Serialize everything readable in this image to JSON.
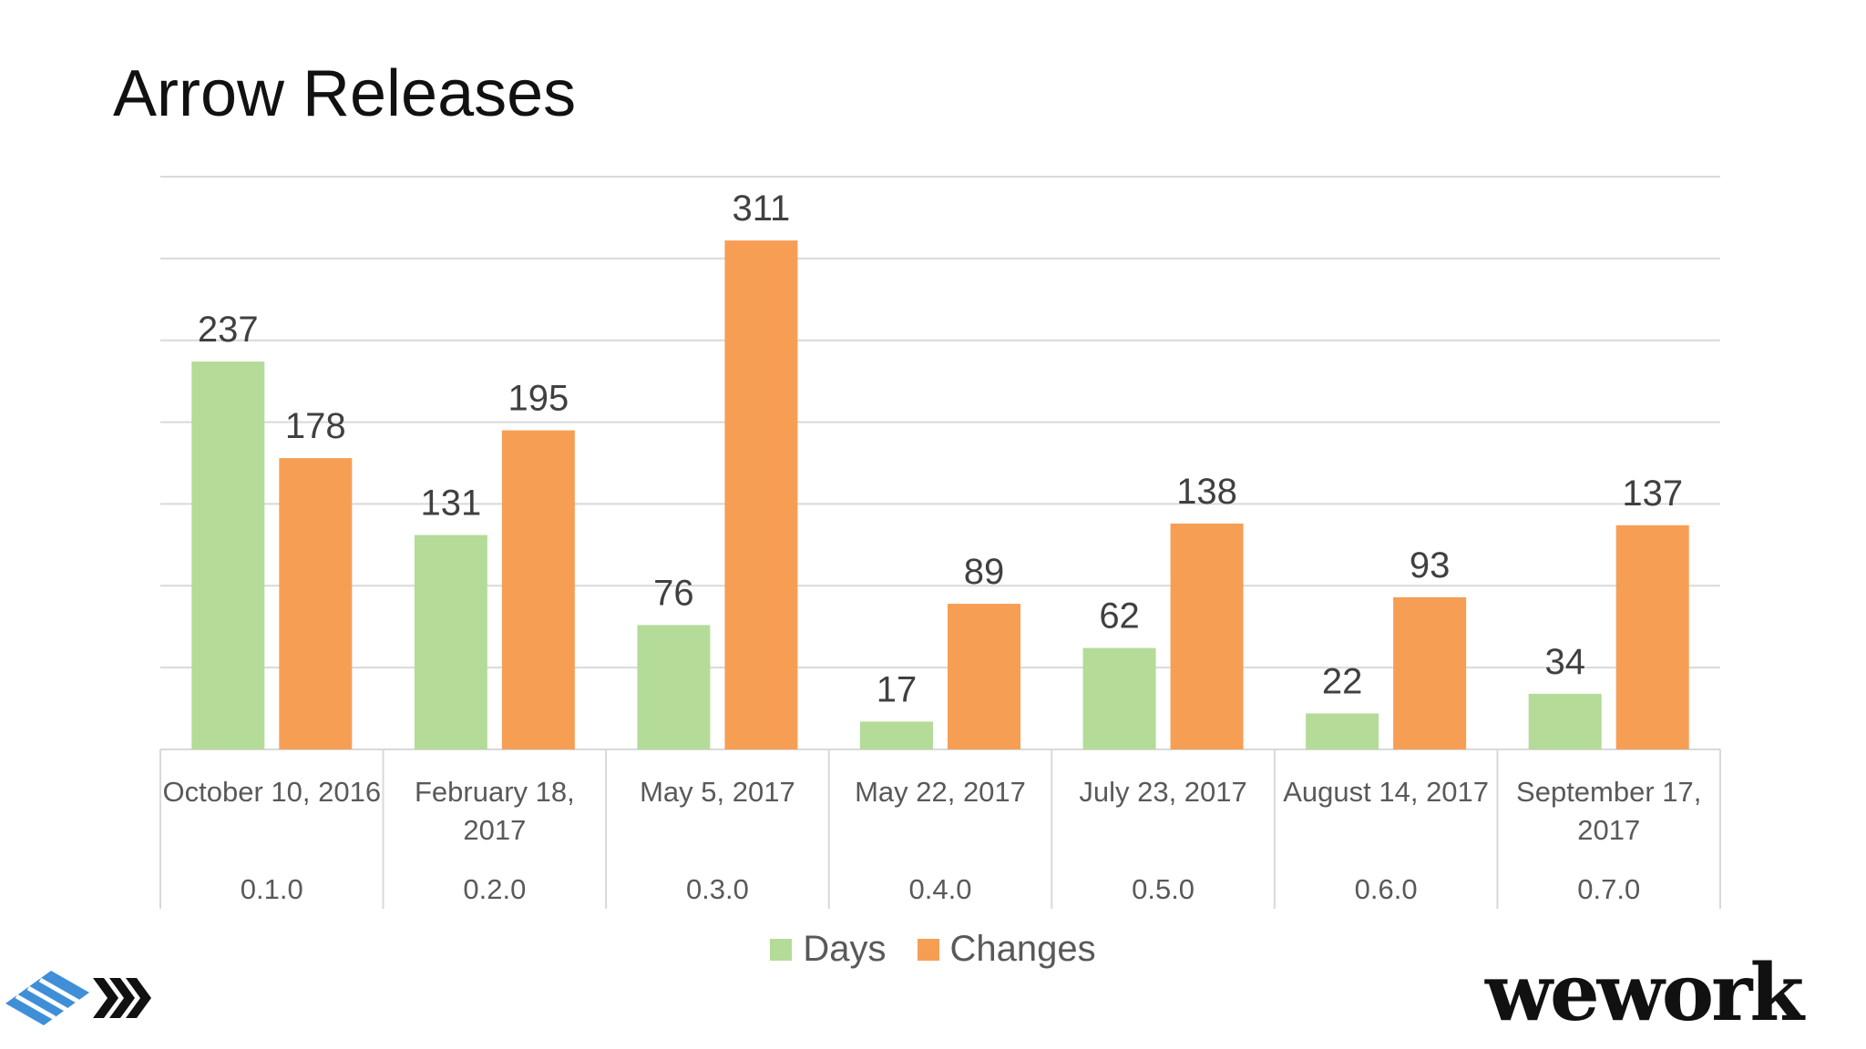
{
  "slide": {
    "title": "Arrow Releases",
    "brand": "wework"
  },
  "colors": {
    "days": "#B4DB98",
    "changes": "#F79E55",
    "grid": "#D9D9D9",
    "axis_text": "#595959",
    "label_text": "#404040"
  },
  "chart_data": {
    "type": "bar",
    "title": "Arrow Releases",
    "categories": [
      {
        "date_lines": [
          "October 10, 2016"
        ],
        "version": "0.1.0"
      },
      {
        "date_lines": [
          "February 18,",
          "2017"
        ],
        "version": "0.2.0"
      },
      {
        "date_lines": [
          "May 5, 2017"
        ],
        "version": "0.3.0"
      },
      {
        "date_lines": [
          "May 22, 2017"
        ],
        "version": "0.4.0"
      },
      {
        "date_lines": [
          "July 23, 2017"
        ],
        "version": "0.5.0"
      },
      {
        "date_lines": [
          "August 14, 2017"
        ],
        "version": "0.6.0"
      },
      {
        "date_lines": [
          "September 17,",
          "2017"
        ],
        "version": "0.7.0"
      }
    ],
    "series": [
      {
        "name": "Days",
        "values": [
          237,
          131,
          76,
          17,
          62,
          22,
          34
        ]
      },
      {
        "name": "Changes",
        "values": [
          178,
          195,
          311,
          89,
          138,
          93,
          137
        ]
      }
    ],
    "ylim": [
      0,
      350
    ],
    "y_gridlines": [
      50,
      100,
      150,
      200,
      250,
      300,
      350
    ],
    "grid": true,
    "legend_position": "bottom-center",
    "xlabel": "",
    "ylabel": ""
  }
}
